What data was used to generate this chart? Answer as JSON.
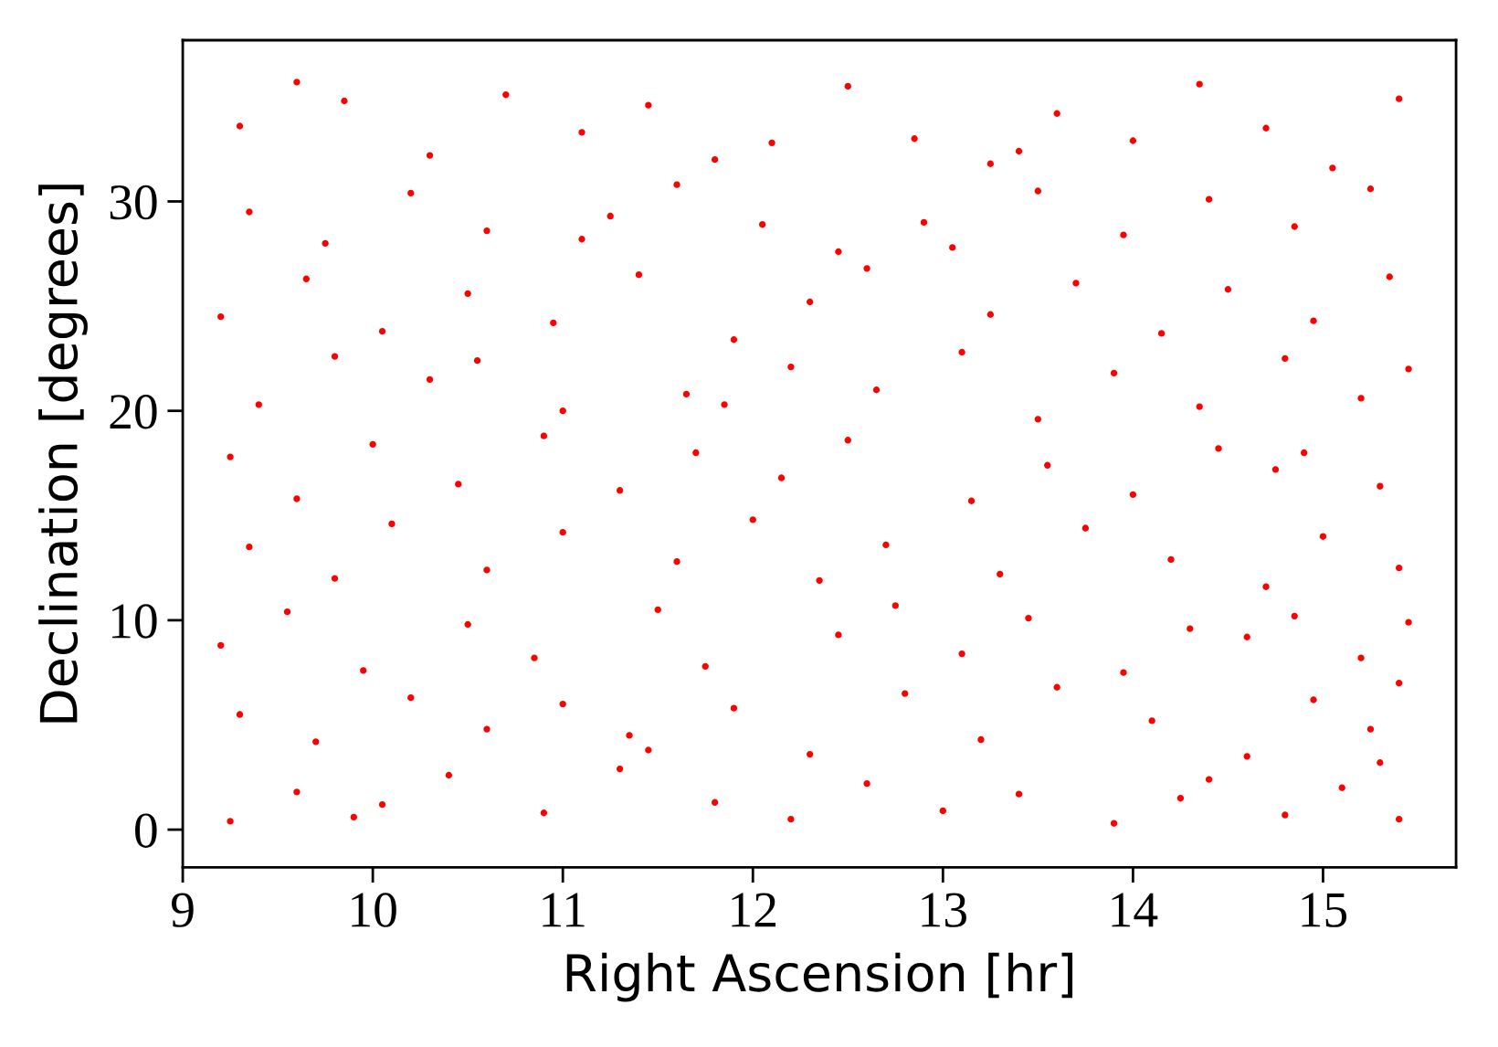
{
  "chart_data": {
    "type": "scatter",
    "xlabel": "Right Ascension [hr]",
    "ylabel": "Declination [degrees]",
    "x": [
      9.25,
      9.6,
      9.9,
      10.05,
      10.4,
      10.9,
      11.3,
      11.45,
      11.8,
      12.2,
      12.6,
      13.0,
      13.4,
      13.9,
      14.25,
      14.4,
      14.8,
      15.1,
      15.4,
      9.3,
      9.7,
      10.2,
      10.6,
      11.0,
      11.35,
      11.9,
      12.3,
      12.8,
      13.2,
      13.6,
      14.1,
      14.6,
      14.95,
      15.25,
      15.4,
      15.3,
      9.2,
      9.55,
      9.95,
      10.5,
      10.85,
      11.5,
      11.75,
      12.45,
      12.75,
      13.1,
      13.45,
      13.95,
      14.3,
      14.6,
      14.85,
      15.2,
      15.45,
      9.35,
      9.8,
      10.1,
      10.6,
      11.0,
      11.6,
      12.0,
      12.35,
      12.7,
      13.3,
      13.75,
      14.2,
      14.7,
      15.0,
      15.4,
      9.25,
      9.6,
      10.0,
      10.45,
      10.9,
      11.3,
      11.7,
      12.15,
      12.5,
      13.15,
      13.55,
      14.0,
      14.45,
      14.75,
      14.9,
      15.3,
      9.4,
      9.8,
      10.3,
      10.55,
      11.0,
      11.65,
      11.85,
      12.2,
      12.65,
      13.1,
      13.5,
      13.9,
      14.35,
      14.8,
      15.2,
      15.45,
      9.2,
      9.65,
      10.05,
      10.5,
      10.95,
      11.4,
      11.9,
      12.3,
      12.6,
      13.25,
      13.7,
      14.15,
      14.5,
      14.95,
      15.35,
      9.35,
      9.75,
      10.2,
      10.6,
      11.1,
      11.25,
      11.6,
      12.05,
      12.45,
      12.9,
      13.05,
      13.5,
      13.95,
      14.4,
      14.85,
      15.25,
      9.3,
      9.6,
      9.85,
      10.3,
      10.7,
      11.1,
      11.45,
      11.8,
      12.1,
      12.5,
      12.85,
      13.25,
      13.4,
      13.6,
      14.0,
      14.35,
      14.7,
      15.05,
      15.4
    ],
    "values": [
      0.4,
      1.8,
      0.6,
      1.2,
      2.6,
      0.8,
      2.9,
      3.8,
      1.3,
      0.5,
      2.2,
      0.9,
      1.7,
      0.3,
      1.5,
      2.4,
      0.7,
      2.0,
      0.5,
      5.5,
      4.2,
      6.3,
      4.8,
      6.0,
      4.5,
      5.8,
      3.6,
      6.5,
      4.3,
      6.8,
      5.2,
      3.5,
      6.2,
      4.8,
      7.0,
      3.2,
      8.8,
      10.4,
      7.6,
      9.8,
      8.2,
      10.5,
      7.8,
      9.3,
      10.7,
      8.4,
      10.1,
      7.5,
      9.6,
      9.2,
      10.2,
      8.2,
      9.9,
      13.5,
      12.0,
      14.6,
      12.4,
      14.2,
      12.8,
      14.8,
      11.9,
      13.6,
      12.2,
      14.4,
      12.9,
      11.6,
      14.0,
      12.5,
      17.8,
      15.8,
      18.4,
      16.5,
      18.8,
      16.2,
      18.0,
      16.8,
      18.6,
      15.7,
      17.4,
      16.0,
      18.2,
      17.2,
      18.0,
      16.4,
      20.3,
      22.6,
      21.5,
      22.4,
      20.0,
      20.8,
      20.3,
      22.1,
      21.0,
      22.8,
      19.6,
      21.8,
      20.2,
      22.5,
      20.6,
      22.0,
      24.5,
      26.3,
      23.8,
      25.6,
      24.2,
      26.5,
      23.4,
      25.2,
      26.8,
      24.6,
      26.1,
      23.7,
      25.8,
      24.3,
      26.4,
      29.5,
      28.0,
      30.4,
      28.6,
      28.2,
      29.3,
      30.8,
      28.9,
      27.6,
      29.0,
      27.8,
      30.5,
      28.4,
      30.1,
      28.8,
      30.6,
      33.6,
      35.7,
      34.8,
      32.2,
      35.1,
      33.3,
      34.6,
      32.0,
      32.8,
      35.5,
      33.0,
      31.8,
      32.4,
      34.2,
      32.9,
      35.6,
      33.5,
      31.6,
      34.9
    ],
    "color": "#ff0000",
    "marker": "circle",
    "xlim": [
      9,
      15.7
    ],
    "ylim": [
      -1.8,
      37.7
    ],
    "xticks": [
      9,
      10,
      11,
      12,
      13,
      14,
      15
    ],
    "yticks": [
      0,
      10,
      20,
      30
    ]
  }
}
